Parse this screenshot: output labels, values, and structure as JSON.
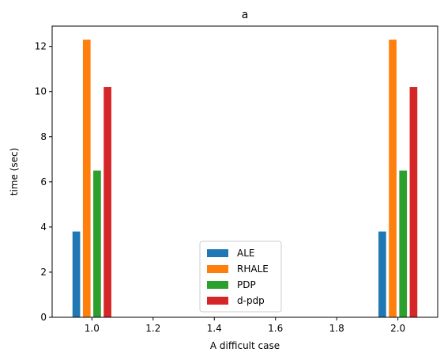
{
  "chart_data": {
    "type": "bar",
    "title": "a",
    "xlabel": "A difficult case",
    "ylabel": "time (sec)",
    "x": [
      1.0,
      2.0
    ],
    "xlim": [
      0.87,
      2.13
    ],
    "ylim": [
      0,
      12.9
    ],
    "xticks": [
      "1.0",
      "1.2",
      "1.4",
      "1.6",
      "1.8",
      "2.0"
    ],
    "yticks": [
      "0",
      "2",
      "4",
      "6",
      "8",
      "10",
      "12"
    ],
    "series": [
      {
        "name": "ALE",
        "values": [
          3.8,
          3.8
        ],
        "color": "#1f77b4"
      },
      {
        "name": "RHALE",
        "values": [
          12.3,
          12.3
        ],
        "color": "#ff7f0e"
      },
      {
        "name": "PDP",
        "values": [
          6.5,
          6.5
        ],
        "color": "#2ca02c"
      },
      {
        "name": "d-pdp",
        "values": [
          10.2,
          10.2
        ],
        "color": "#d62728"
      }
    ],
    "legend_position": "lower center",
    "grid": false
  }
}
